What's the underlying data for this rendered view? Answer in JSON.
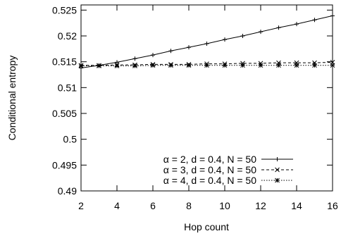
{
  "chart_data": {
    "type": "line",
    "xlabel": "Hop count",
    "ylabel": "Conditional entropy",
    "xlim": [
      2,
      16
    ],
    "ylim": [
      0.49,
      0.526
    ],
    "x_ticks": [
      2,
      4,
      6,
      8,
      10,
      12,
      14,
      16
    ],
    "x_tick_labels": [
      "2",
      "4",
      "6",
      "8",
      "10",
      "12",
      "14",
      "16"
    ],
    "y_ticks": [
      0.49,
      0.495,
      0.5,
      0.505,
      0.51,
      0.515,
      0.52,
      0.525
    ],
    "y_tick_labels": [
      "0.49",
      "0.495",
      "0.5",
      "0.505",
      "0.51",
      "0.515",
      "0.52",
      "0.525"
    ],
    "grid": false,
    "legend_position": "bottom-right",
    "x": [
      2,
      3,
      4,
      5,
      6,
      7,
      8,
      9,
      10,
      11,
      12,
      13,
      14,
      15,
      16
    ],
    "series": [
      {
        "name": "α = 2, d = 0.4, N = 50",
        "style": "solid",
        "marker": "plus",
        "values": [
          0.5138,
          0.5143,
          0.5149,
          0.5156,
          0.5163,
          0.5171,
          0.5178,
          0.5185,
          0.5193,
          0.52,
          0.5208,
          0.5216,
          0.5223,
          0.5231,
          0.5239
        ]
      },
      {
        "name": "α = 3, d = 0.4, N = 50",
        "style": "dashed",
        "marker": "cross",
        "values": [
          0.5143,
          0.5143,
          0.5144,
          0.5144,
          0.5145,
          0.5145,
          0.5145,
          0.5146,
          0.5146,
          0.5147,
          0.5147,
          0.5148,
          0.5148,
          0.5148,
          0.5149
        ]
      },
      {
        "name": "α = 4, d = 0.4, N = 50",
        "style": "dotted",
        "marker": "star",
        "values": [
          0.5142,
          0.5142,
          0.5142,
          0.5142,
          0.5143,
          0.5143,
          0.5143,
          0.5143,
          0.5143,
          0.5143,
          0.5143,
          0.5143,
          0.5143,
          0.5143,
          0.5143
        ]
      }
    ]
  }
}
